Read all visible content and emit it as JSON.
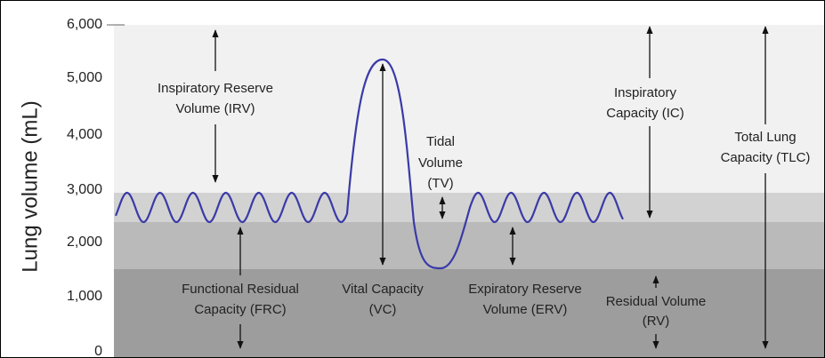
{
  "y_axis": {
    "label": "Lung volume (mL)",
    "ticks": [
      "6,000",
      "5,000",
      "4,000",
      "3,000",
      "2,000",
      "1,000",
      "0"
    ]
  },
  "annotations": [
    {
      "lines": [
        "Inspiratory Reserve",
        "Volume (IRV)"
      ]
    },
    {
      "lines": [
        "Tidal",
        "Volume",
        "(TV)"
      ]
    },
    {
      "lines": [
        "Inspiratory",
        "Capacity (IC)"
      ]
    },
    {
      "lines": [
        "Total Lung",
        "Capacity (TLC)"
      ]
    },
    {
      "lines": [
        "Functional Residual",
        "Capacity (FRC)"
      ]
    },
    {
      "lines": [
        "Vital Capacity",
        "(VC)"
      ]
    },
    {
      "lines": [
        "Expiratory Reserve",
        "Volume (ERV)"
      ]
    },
    {
      "lines": [
        "Residual Volume",
        "(RV)"
      ]
    }
  ]
}
